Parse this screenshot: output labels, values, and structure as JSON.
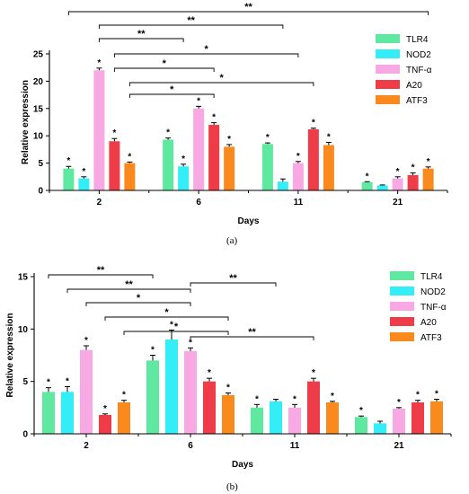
{
  "figure": {
    "panels": [
      {
        "label": "(a)"
      },
      {
        "label": "(b)"
      }
    ]
  },
  "chart_data": [
    {
      "type": "bar",
      "xlabel": "Days",
      "ylabel": "Relative expression",
      "ylim": [
        0,
        25
      ],
      "yticks": [
        0,
        5,
        10,
        15,
        20,
        25
      ],
      "categories": [
        "2",
        "6",
        "11",
        "21"
      ],
      "legend_position": "top-right",
      "series": [
        {
          "name": "TLR4",
          "color": "#5ee8a0",
          "values": [
            4.0,
            9.3,
            8.5,
            1.5
          ],
          "errors": [
            0.4,
            0.3,
            0.2,
            0.1
          ],
          "stars": [
            "*",
            "*",
            "*",
            "*"
          ]
        },
        {
          "name": "NOD2",
          "color": "#33eef7",
          "values": [
            2.2,
            4.4,
            1.6,
            0.9
          ],
          "errors": [
            0.3,
            0.4,
            0.5,
            0.1
          ],
          "stars": [
            "*",
            "*",
            "",
            ""
          ]
        },
        {
          "name": "TNF-α",
          "color": "#f8a8e2",
          "values": [
            22.0,
            15.0,
            5.0,
            2.2
          ],
          "errors": [
            0.4,
            0.4,
            0.3,
            0.3
          ],
          "stars": [
            "*",
            "*",
            "*",
            "*"
          ]
        },
        {
          "name": "A20",
          "color": "#ee3c48",
          "values": [
            9.0,
            12.0,
            11.2,
            2.8
          ],
          "errors": [
            0.5,
            0.4,
            0.2,
            0.4
          ],
          "stars": [
            "*",
            "*",
            "*",
            "*"
          ]
        },
        {
          "name": "ATF3",
          "color": "#fb8a1e",
          "values": [
            5.0,
            8.0,
            8.3,
            4.0
          ],
          "errors": [
            0.2,
            0.4,
            0.5,
            0.3
          ],
          "stars": [
            "*",
            "*",
            "*",
            "*"
          ]
        }
      ],
      "brackets": [
        {
          "from": {
            "category": 0,
            "series": 0
          },
          "to": {
            "category": 3,
            "series": 4
          },
          "label": "**"
        },
        {
          "from": {
            "category": 0,
            "series": 2
          },
          "to": {
            "category": 2,
            "series": 1
          },
          "label": "**"
        },
        {
          "from": {
            "category": 0,
            "series": 2
          },
          "to": {
            "category": 1,
            "series": 1
          },
          "label": "**"
        },
        {
          "from": {
            "category": 0,
            "series": 3
          },
          "to": {
            "category": 2,
            "series": 2
          },
          "label": "*"
        },
        {
          "from": {
            "category": 0,
            "series": 3
          },
          "to": {
            "category": 1,
            "series": 3
          },
          "label": "*"
        },
        {
          "from": {
            "category": 0,
            "series": 4
          },
          "to": {
            "category": 2,
            "series": 3
          },
          "label": "*"
        },
        {
          "from": {
            "category": 0,
            "series": 4
          },
          "to": {
            "category": 1,
            "series": 3
          },
          "label": "*"
        }
      ]
    },
    {
      "type": "bar",
      "xlabel": "Days",
      "ylabel": "Relative expression",
      "ylim": [
        0,
        15
      ],
      "yticks": [
        0,
        5,
        10,
        15
      ],
      "categories": [
        "2",
        "6",
        "11",
        "21"
      ],
      "legend_position": "top-right",
      "series": [
        {
          "name": "TLR4",
          "color": "#5ee8a0",
          "values": [
            4.0,
            7.0,
            2.5,
            1.6
          ],
          "errors": [
            0.4,
            0.5,
            0.3,
            0.1
          ],
          "stars": [
            "*",
            "*",
            "*",
            "*"
          ]
        },
        {
          "name": "NOD2",
          "color": "#33eef7",
          "values": [
            4.0,
            9.0,
            3.1,
            1.0
          ],
          "errors": [
            0.5,
            0.9,
            0.2,
            0.2
          ],
          "stars": [
            "*",
            "*",
            "",
            ""
          ]
        },
        {
          "name": "TNF-α",
          "color": "#f8a8e2",
          "values": [
            8.0,
            7.9,
            2.5,
            2.4
          ],
          "errors": [
            0.4,
            0.3,
            0.3,
            0.1
          ],
          "stars": [
            "*",
            "*",
            "*",
            "*"
          ]
        },
        {
          "name": "A20",
          "color": "#ee3c48",
          "values": [
            1.8,
            5.0,
            5.0,
            3.0
          ],
          "errors": [
            0.1,
            0.3,
            0.3,
            0.2
          ],
          "stars": [
            "*",
            "*",
            "*",
            "*"
          ]
        },
        {
          "name": "ATF3",
          "color": "#fb8a1e",
          "values": [
            3.0,
            3.7,
            3.0,
            3.1
          ],
          "errors": [
            0.2,
            0.2,
            0.1,
            0.2
          ],
          "stars": [
            "*",
            "*",
            "*",
            "*"
          ]
        }
      ],
      "brackets": [
        {
          "from": {
            "category": 0,
            "series": 0
          },
          "to": {
            "category": 1,
            "series": 0
          },
          "label": "**"
        },
        {
          "from": {
            "category": 0,
            "series": 1
          },
          "to": {
            "category": 1,
            "series": 2
          },
          "label": "**"
        },
        {
          "from": {
            "category": 1,
            "series": 2
          },
          "to": {
            "category": 2,
            "series": 1
          },
          "label": "**"
        },
        {
          "from": {
            "category": 0,
            "series": 2
          },
          "to": {
            "category": 1,
            "series": 2
          },
          "label": "*"
        },
        {
          "from": {
            "category": 0,
            "series": 3
          },
          "to": {
            "category": 1,
            "series": 4
          },
          "label": "*"
        },
        {
          "from": {
            "category": 0,
            "series": 4
          },
          "to": {
            "category": 1,
            "series": 4
          },
          "label": "*"
        },
        {
          "from": {
            "category": 1,
            "series": 2
          },
          "to": {
            "category": 2,
            "series": 3
          },
          "label": "**"
        }
      ]
    }
  ]
}
